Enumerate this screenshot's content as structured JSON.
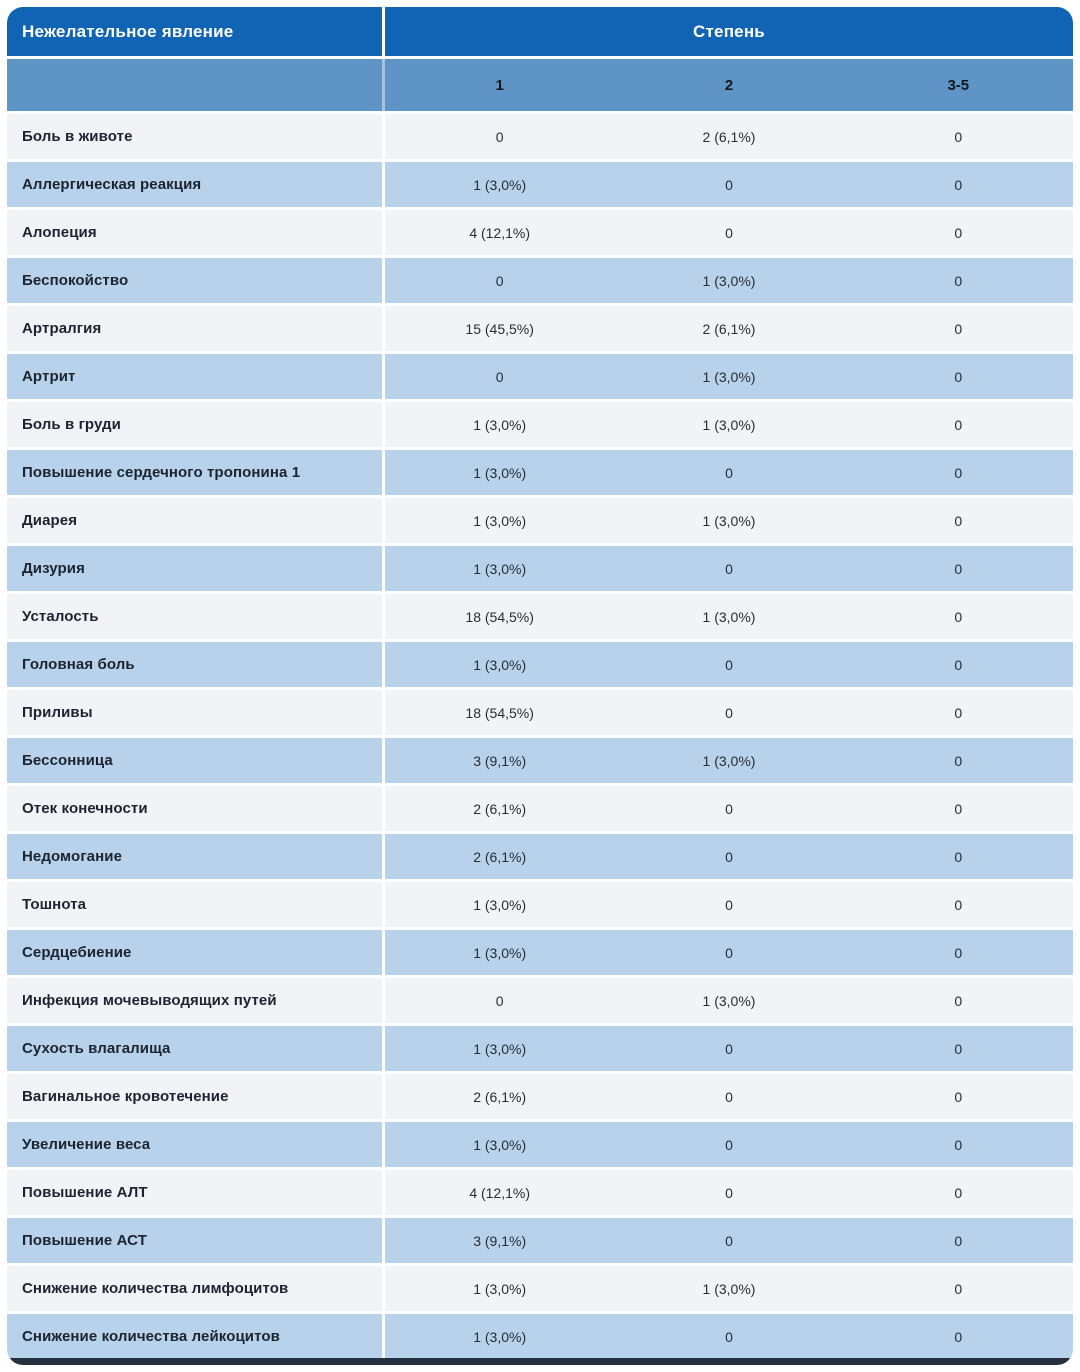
{
  "table": {
    "col1_header": "Нежелательное явление",
    "group_header": "Степень",
    "grade_headers": [
      "1",
      "2",
      "3-5"
    ],
    "rows": [
      {
        "label": "Боль в животе",
        "values": [
          "0",
          "2 (6,1%)",
          "0"
        ]
      },
      {
        "label": "Аллергическая реакция",
        "values": [
          "1 (3,0%)",
          "0",
          "0"
        ]
      },
      {
        "label": "Алопеция",
        "values": [
          "4 (12,1%)",
          "0",
          "0"
        ]
      },
      {
        "label": "Беспокойство",
        "values": [
          "0",
          "1 (3,0%)",
          "0"
        ]
      },
      {
        "label": "Артралгия",
        "values": [
          "15 (45,5%)",
          "2 (6,1%)",
          "0"
        ]
      },
      {
        "label": "Артрит",
        "values": [
          "0",
          "1 (3,0%)",
          "0"
        ]
      },
      {
        "label": "Боль в груди",
        "values": [
          "1 (3,0%)",
          "1 (3,0%)",
          "0"
        ]
      },
      {
        "label": "Повышение сердечного тропонина 1",
        "values": [
          "1 (3,0%)",
          "0",
          "0"
        ]
      },
      {
        "label": "Диарея",
        "values": [
          "1 (3,0%)",
          "1 (3,0%)",
          "0"
        ]
      },
      {
        "label": "Дизурия",
        "values": [
          "1 (3,0%)",
          "0",
          "0"
        ]
      },
      {
        "label": "Усталость",
        "values": [
          "18 (54,5%)",
          "1 (3,0%)",
          "0"
        ]
      },
      {
        "label": "Головная боль",
        "values": [
          "1 (3,0%)",
          "0",
          "0"
        ]
      },
      {
        "label": "Приливы",
        "values": [
          "18 (54,5%)",
          "0",
          "0"
        ]
      },
      {
        "label": "Бессонница",
        "values": [
          "3 (9,1%)",
          "1 (3,0%)",
          "0"
        ]
      },
      {
        "label": "Отек конечности",
        "values": [
          "2 (6,1%)",
          "0",
          "0"
        ]
      },
      {
        "label": "Недомогание",
        "values": [
          "2 (6,1%)",
          "0",
          "0"
        ]
      },
      {
        "label": "Тошнота",
        "values": [
          "1 (3,0%)",
          "0",
          "0"
        ]
      },
      {
        "label": "Сердцебиение",
        "values": [
          "1 (3,0%)",
          "0",
          "0"
        ]
      },
      {
        "label": "Инфекция мочевыводящих путей",
        "values": [
          "0",
          "1 (3,0%)",
          "0"
        ]
      },
      {
        "label": "Сухость влагалища",
        "values": [
          "1 (3,0%)",
          "0",
          "0"
        ]
      },
      {
        "label": "Вагинальное кровотечение",
        "values": [
          "2 (6,1%)",
          "0",
          "0"
        ]
      },
      {
        "label": "Увеличение веса",
        "values": [
          "1 (3,0%)",
          "0",
          "0"
        ]
      },
      {
        "label": "Повышение АЛТ",
        "values": [
          "4 (12,1%)",
          "0",
          "0"
        ]
      },
      {
        "label": "Повышение АСТ",
        "values": [
          "3 (9,1%)",
          "0",
          "0"
        ]
      },
      {
        "label": "Снижение количества лимфоцитов",
        "values": [
          "1 (3,0%)",
          "1 (3,0%)",
          "0"
        ]
      },
      {
        "label": "Снижение количества лейкоцитов",
        "values": [
          "1 (3,0%)",
          "0",
          "0"
        ]
      }
    ]
  },
  "chart_data": {
    "type": "table",
    "title": "",
    "columns": [
      "Нежелательное явление",
      "Степень 1",
      "Степень 2",
      "Степень 3-5"
    ],
    "rows": [
      [
        "Боль в животе",
        "0",
        "2 (6,1%)",
        "0"
      ],
      [
        "Аллергическая реакция",
        "1 (3,0%)",
        "0",
        "0"
      ],
      [
        "Алопеция",
        "4 (12,1%)",
        "0",
        "0"
      ],
      [
        "Беспокойство",
        "0",
        "1 (3,0%)",
        "0"
      ],
      [
        "Артралгия",
        "15 (45,5%)",
        "2 (6,1%)",
        "0"
      ],
      [
        "Артрит",
        "0",
        "1 (3,0%)",
        "0"
      ],
      [
        "Боль в груди",
        "1 (3,0%)",
        "1 (3,0%)",
        "0"
      ],
      [
        "Повышение сердечного тропонина 1",
        "1 (3,0%)",
        "0",
        "0"
      ],
      [
        "Диарея",
        "1 (3,0%)",
        "1 (3,0%)",
        "0"
      ],
      [
        "Дизурия",
        "1 (3,0%)",
        "0",
        "0"
      ],
      [
        "Усталость",
        "18 (54,5%)",
        "1 (3,0%)",
        "0"
      ],
      [
        "Головная боль",
        "1 (3,0%)",
        "0",
        "0"
      ],
      [
        "Приливы",
        "18 (54,5%)",
        "0",
        "0"
      ],
      [
        "Бессонница",
        "3 (9,1%)",
        "1 (3,0%)",
        "0"
      ],
      [
        "Отек конечности",
        "2 (6,1%)",
        "0",
        "0"
      ],
      [
        "Недомогание",
        "2 (6,1%)",
        "0",
        "0"
      ],
      [
        "Тошнота",
        "1 (3,0%)",
        "0",
        "0"
      ],
      [
        "Сердцебиение",
        "1 (3,0%)",
        "0",
        "0"
      ],
      [
        "Инфекция мочевыводящих путей",
        "0",
        "1 (3,0%)",
        "0"
      ],
      [
        "Сухость влагалища",
        "1 (3,0%)",
        "0",
        "0"
      ],
      [
        "Вагинальное кровотечение",
        "2 (6,1%)",
        "0",
        "0"
      ],
      [
        "Увеличение веса",
        "1 (3,0%)",
        "0",
        "0"
      ],
      [
        "Повышение АЛТ",
        "4 (12,1%)",
        "0",
        "0"
      ],
      [
        "Повышение АСТ",
        "3 (9,1%)",
        "0",
        "0"
      ],
      [
        "Снижение количества лимфоцитов",
        "1 (3,0%)",
        "1 (3,0%)",
        "0"
      ],
      [
        "Снижение количества лейкоцитов",
        "1 (3,0%)",
        "0",
        "0"
      ]
    ]
  },
  "colors": {
    "header_blue": "#1164b4",
    "subheader_blue": "#5e94c6",
    "row_light_blue": "#b7d2ea",
    "row_gray": "#f2f3f6",
    "bottom_strip": "#26303e",
    "header_text": "#ffffff",
    "label_text": "#1b2430"
  }
}
